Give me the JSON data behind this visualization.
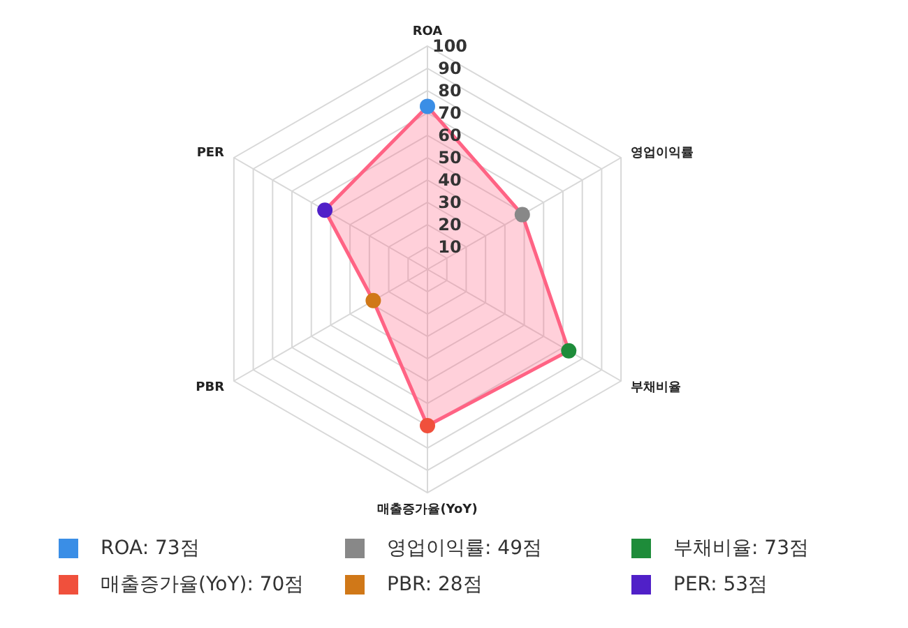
{
  "chart_data": {
    "type": "radar",
    "categories": [
      "ROA",
      "영업이익률",
      "부채비율",
      "매출증가율(YoY)",
      "PBR",
      "PER"
    ],
    "series": [
      {
        "color": "#ff6384",
        "values": [
          73,
          49,
          73,
          70,
          28,
          53
        ],
        "colors": [
          "#3a8ee6",
          "#888888",
          "#1e8c3a",
          "#f0503c",
          "#d07818",
          "#5020c8"
        ]
      }
    ],
    "annotations": [
      "ROA: 73점",
      "영업이익률: 49점",
      "부채비율: 73점",
      "매출증가율(YoY): 70점",
      "PBR: 28점",
      "PER: 53점"
    ],
    "ylim": [
      0,
      100
    ],
    "yticks": [
      10,
      20,
      30,
      40,
      50,
      60,
      70,
      80,
      90,
      100
    ],
    "grid": true,
    "marker": "circle"
  }
}
